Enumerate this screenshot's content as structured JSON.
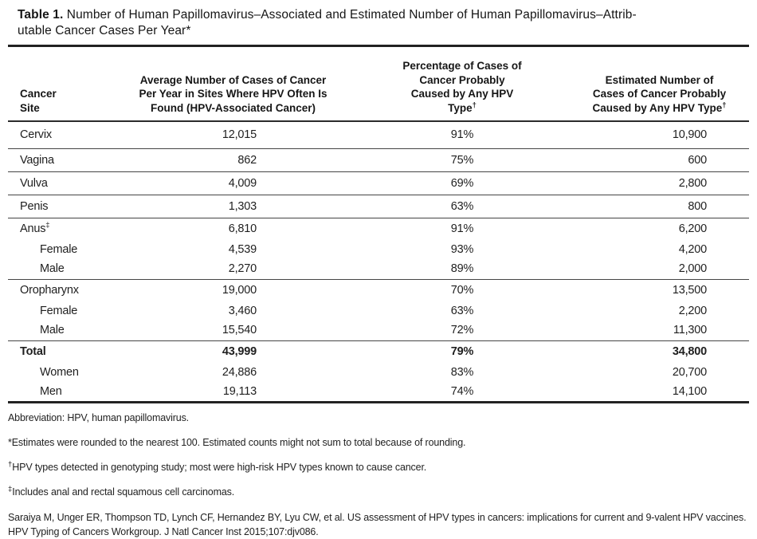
{
  "colors": {
    "background": "#ffffff",
    "text": "#1b1b1b",
    "rule_heavy": "#222222",
    "rule_header": "#2b2b2b",
    "rule_row": "#454545"
  },
  "title": {
    "label": "Table 1.",
    "line1": "Number of Human Papillomavirus–Associated and Estimated Number of Human Papillomavirus–Attrib-",
    "line2": "utable Cancer Cases Per Year*"
  },
  "table": {
    "headers": {
      "col1": {
        "lines": [
          "Cancer",
          "Site"
        ]
      },
      "col2": {
        "lines": [
          "Average Number of Cases of Cancer",
          "Per Year in Sites Where HPV Often Is",
          "Found (HPV-Associated Cancer)"
        ]
      },
      "col3": {
        "lines": [
          "Percentage of Cases of",
          "Cancer Probably",
          "Caused by Any HPV"
        ],
        "last_line": "Type",
        "sup": "†"
      },
      "col4": {
        "lines": [
          "Estimated Number of",
          "Cases of Cancer Probably"
        ],
        "last_line": "Caused by Any HPV Type",
        "sup": "†"
      }
    },
    "rows": [
      {
        "site": "Cervix",
        "sup": "",
        "associated": "12,015",
        "percent": "91%",
        "attributable": "10,900"
      },
      {
        "site": "Vagina",
        "sup": "",
        "associated": "862",
        "percent": "75%",
        "attributable": "600"
      },
      {
        "site": "Vulva",
        "sup": "",
        "associated": "4,009",
        "percent": "69%",
        "attributable": "2,800"
      },
      {
        "site": "Penis",
        "sup": "",
        "associated": "1,303",
        "percent": "63%",
        "attributable": "800"
      },
      {
        "site": "Anus",
        "sup": "‡",
        "associated": "6,810",
        "percent": "91%",
        "attributable": "6,200"
      },
      {
        "site": "Female",
        "sup": "",
        "associated": "4,539",
        "percent": "93%",
        "attributable": "4,200"
      },
      {
        "site": "Male",
        "sup": "",
        "associated": "2,270",
        "percent": "89%",
        "attributable": "2,000"
      },
      {
        "site": "Oropharynx",
        "sup": "",
        "associated": "19,000",
        "percent": "70%",
        "attributable": "13,500"
      },
      {
        "site": "Female",
        "sup": "",
        "associated": "3,460",
        "percent": "63%",
        "attributable": "2,200"
      },
      {
        "site": "Male",
        "sup": "",
        "associated": "15,540",
        "percent": "72%",
        "attributable": "11,300"
      },
      {
        "site": "Total",
        "sup": "",
        "associated": "43,999",
        "percent": "79%",
        "attributable": "34,800"
      },
      {
        "site": "Women",
        "sup": "",
        "associated": "24,886",
        "percent": "83%",
        "attributable": "20,700"
      },
      {
        "site": "Men",
        "sup": "",
        "associated": "19,113",
        "percent": "74%",
        "attributable": "14,100"
      }
    ]
  },
  "footnotes": {
    "abbreviation": "Abbreviation: HPV, human papillomavirus.",
    "star": {
      "marker": "*",
      "text": "Estimates were rounded to the nearest 100. Estimated counts might not sum to total because of rounding."
    },
    "dagger": {
      "marker": "†",
      "text": "HPV types detected in genotyping study; most were high-risk HPV types known to cause cancer."
    },
    "double_dagger": {
      "marker": "‡",
      "text": "Includes anal and rectal squamous cell carcinomas."
    },
    "citation": "Saraiya M, Unger ER, Thompson TD, Lynch CF, Hernandez BY, Lyu CW, et al. US assessment of HPV types in cancers: implications for current and 9-valent HPV vaccines. HPV Typing of Cancers Workgroup. J Natl Cancer Inst 2015;107:djv086."
  }
}
